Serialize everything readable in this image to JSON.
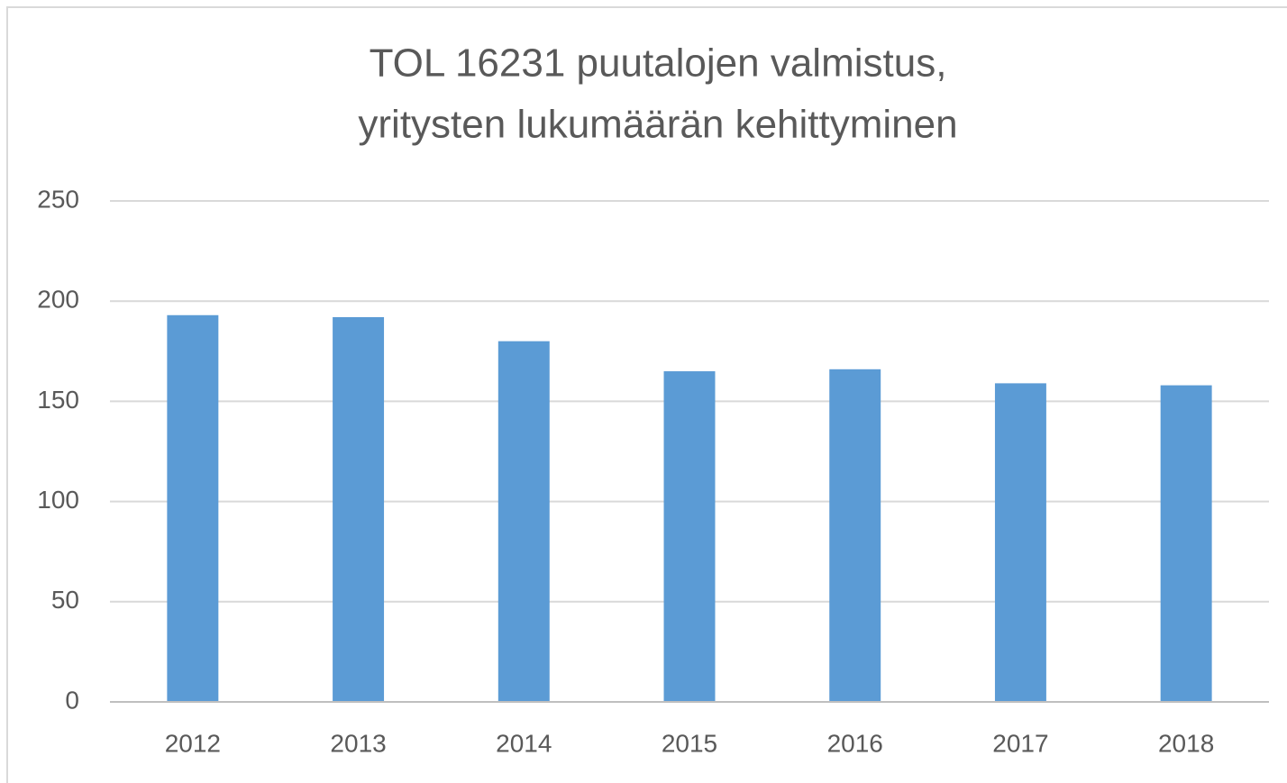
{
  "chart_data": {
    "type": "bar",
    "title": [
      "TOL 16231 puutalojen valmistus,",
      "yritysten lukumäärän kehittyminen"
    ],
    "categories": [
      "2012",
      "2013",
      "2014",
      "2015",
      "2016",
      "2017",
      "2018"
    ],
    "values": [
      193,
      192,
      180,
      165,
      166,
      159,
      158
    ],
    "color": "#5b9bd5",
    "ylim": [
      0,
      250
    ],
    "yticks": [
      0,
      50,
      100,
      150,
      200,
      250
    ],
    "grid": true
  }
}
